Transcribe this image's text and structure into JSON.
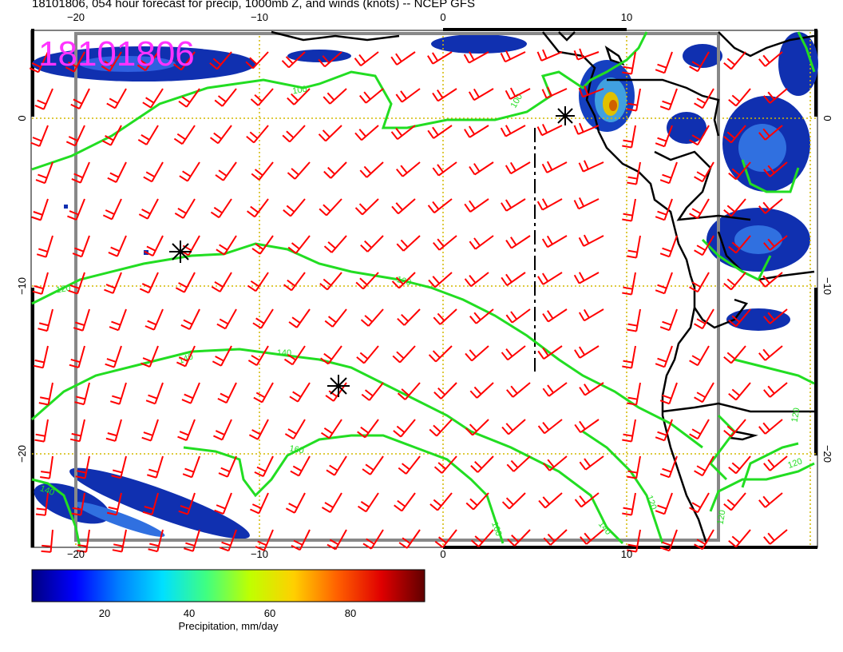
{
  "title": "18101806, 054 hour forecast for precip, 1000mb Z, and winds (knots) -- NCEP GFS",
  "stamp": "18101806",
  "axes": {
    "x_ticks_top": [
      "−20",
      "−10",
      "0",
      "10"
    ],
    "x_ticks_bottom": [
      "−20",
      "−10",
      "0",
      "10"
    ],
    "y_ticks_left": [
      "0",
      "−10",
      "−20"
    ],
    "y_ticks_right": [
      "0",
      "−10",
      "−20"
    ]
  },
  "contour_labels": [
    "100",
    "100",
    "120",
    "120",
    "140",
    "140",
    "140",
    "160",
    "160",
    "120",
    "140",
    "120",
    "120",
    "120"
  ],
  "colorbar": {
    "label": "Precipitation, mm/day",
    "ticks": [
      "20",
      "40",
      "60",
      "80"
    ],
    "colors": [
      "#00007f",
      "#0000ff",
      "#0080ff",
      "#00e0ff",
      "#40ff80",
      "#c0ff00",
      "#ffd000",
      "#ff6000",
      "#e00000",
      "#600000"
    ]
  },
  "colors": {
    "contour": "#22dd22",
    "barb": "#ff0000",
    "coast": "#000000",
    "grid": "#d4b800",
    "stamp": "#ff33ff"
  }
}
